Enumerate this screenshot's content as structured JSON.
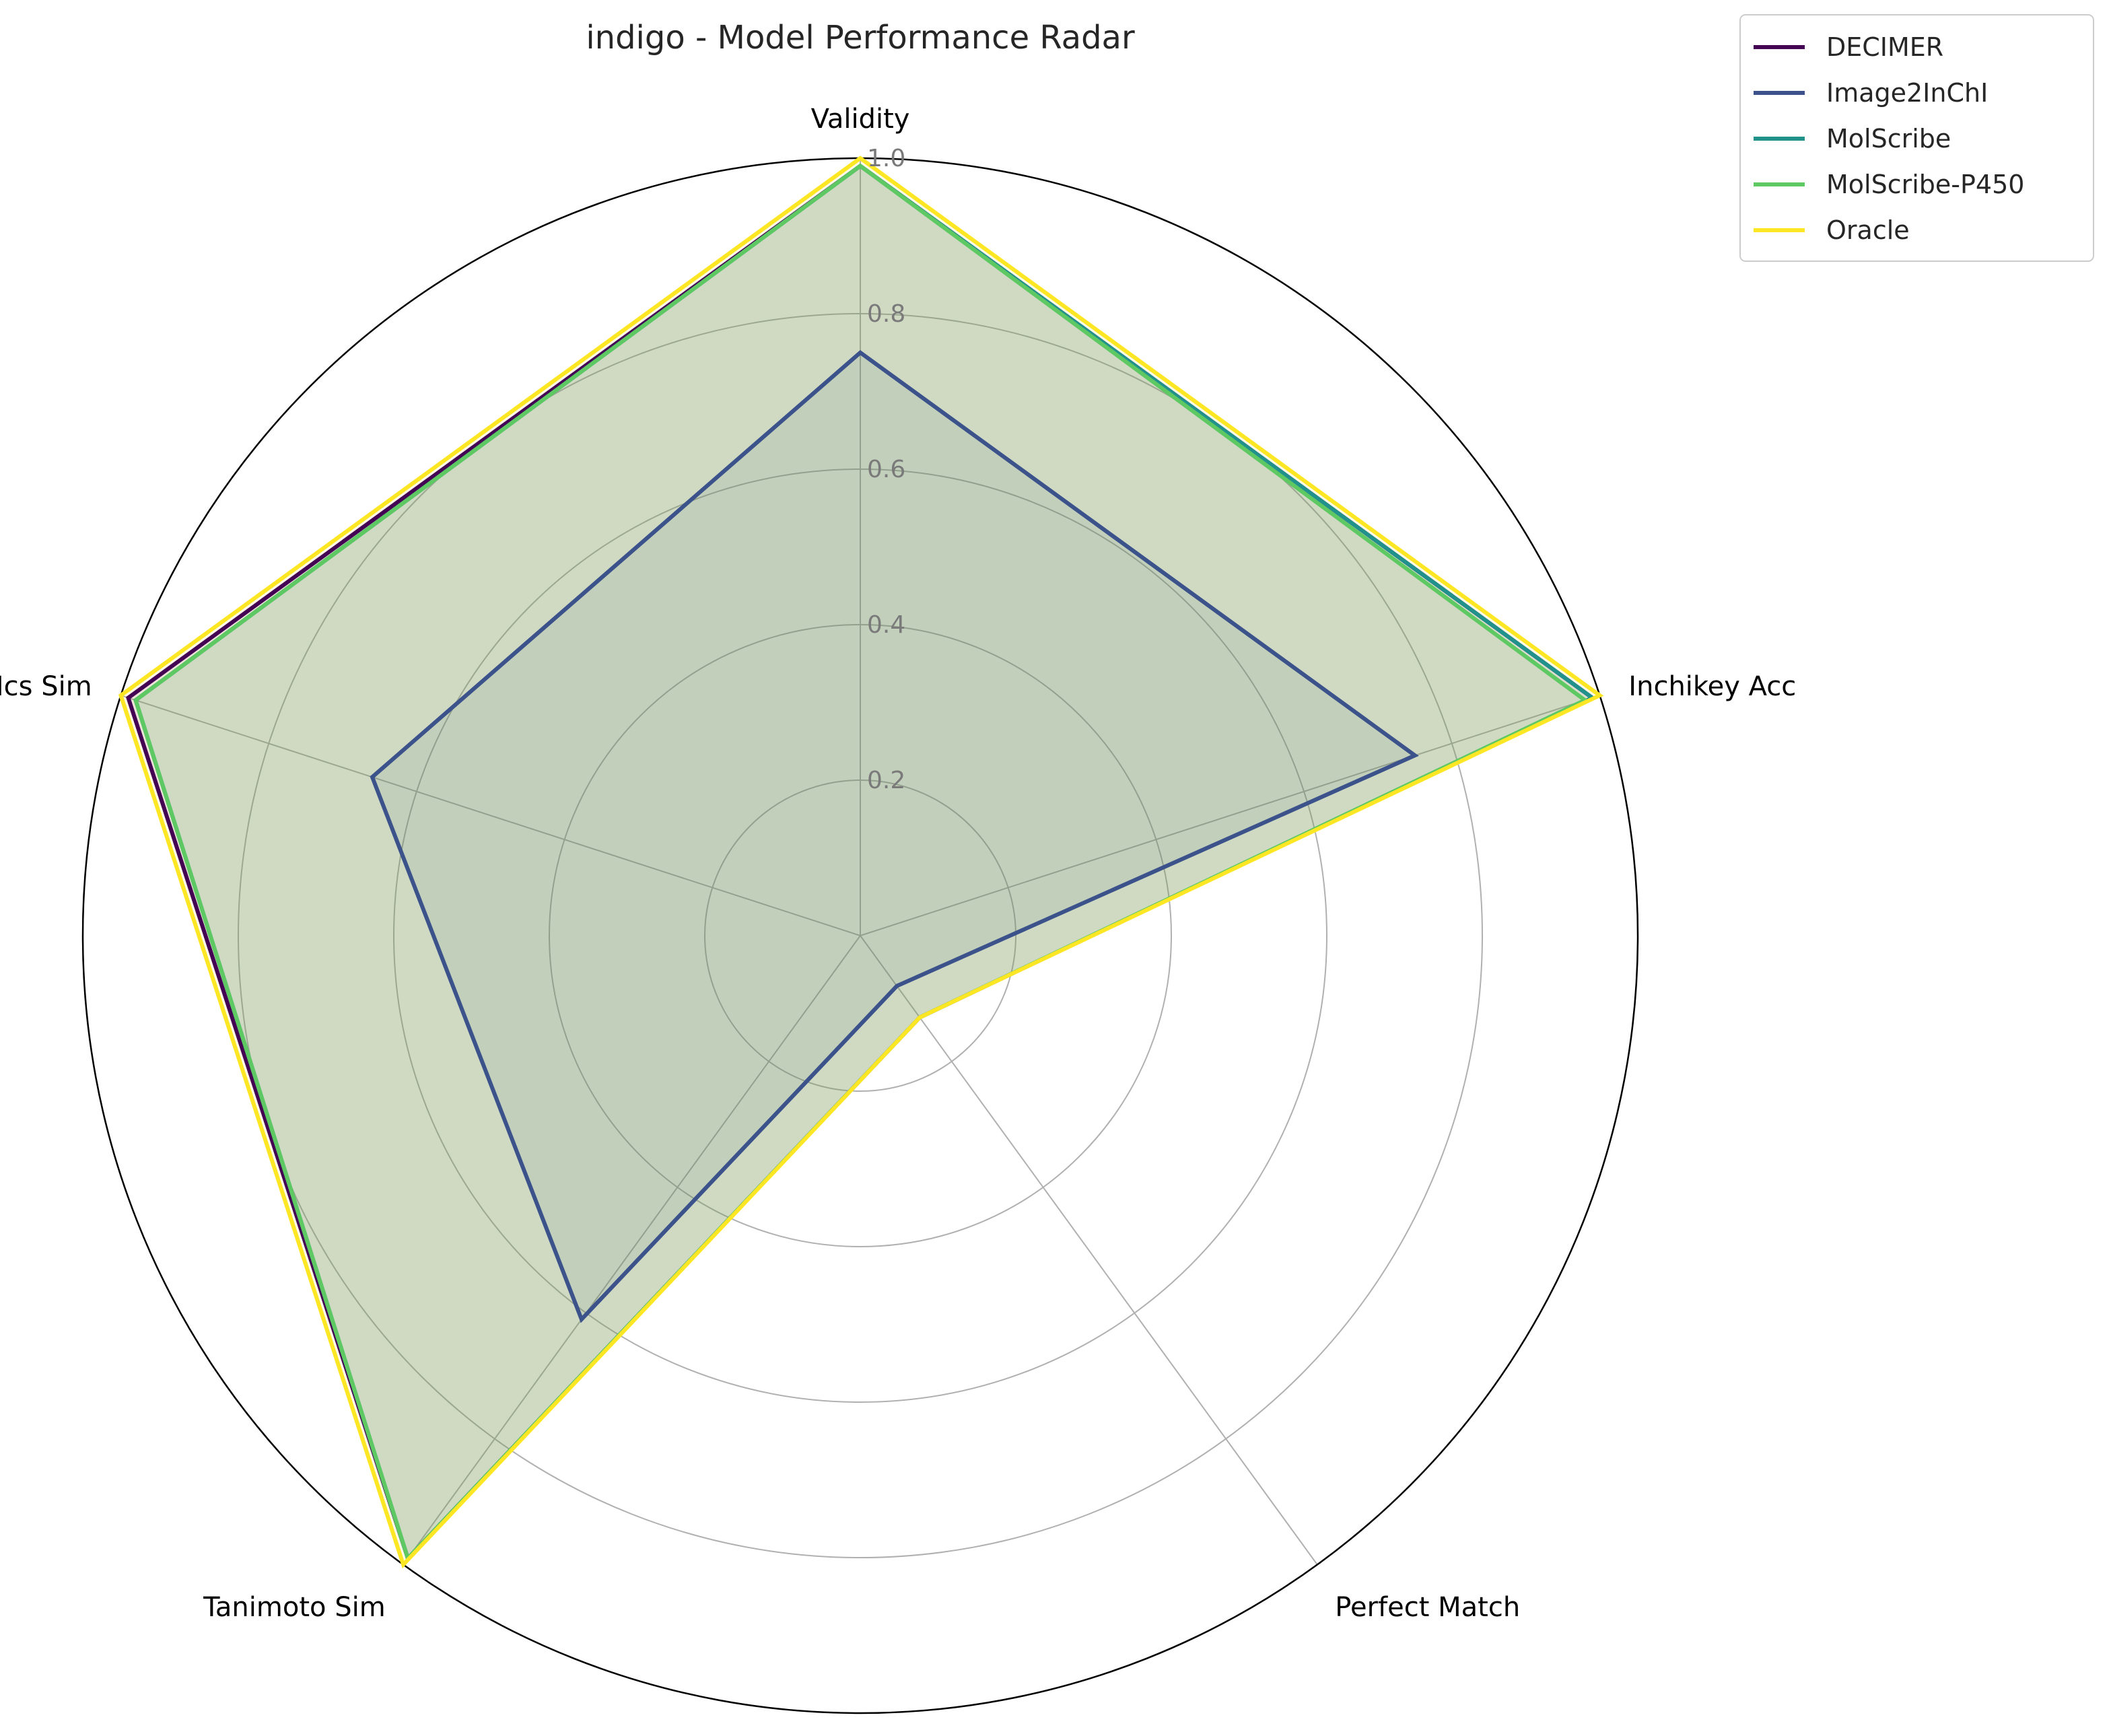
{
  "chart_data": {
    "type": "radar",
    "title": "indigo - Model Performance Radar",
    "axes": [
      "Validity",
      "Inchikey Acc",
      "Perfect Match",
      "Tanimoto Sim",
      "Mcs Sim"
    ],
    "radial_ticks": [
      "0.2",
      "0.4",
      "0.6",
      "0.8",
      "1.0"
    ],
    "rlim": [
      0,
      1.0
    ],
    "grid": true,
    "legend_position": "top-right, outside",
    "series": [
      {
        "name": "DECIMER",
        "color": "#440154",
        "values": [
          0.99,
          0.99,
          0.13,
          0.99,
          0.99
        ]
      },
      {
        "name": "Image2InChI",
        "color": "#3b528b",
        "values": [
          0.75,
          0.75,
          0.08,
          0.61,
          0.66
        ]
      },
      {
        "name": "MolScribe",
        "color": "#21918c",
        "values": [
          0.99,
          0.99,
          0.13,
          0.99,
          0.98
        ]
      },
      {
        "name": "MolScribe-P450",
        "color": "#5ec962",
        "values": [
          0.99,
          0.98,
          0.13,
          0.99,
          0.98
        ]
      },
      {
        "name": "Oracle",
        "color": "#fde725",
        "values": [
          1.0,
          1.0,
          0.13,
          1.0,
          1.0
        ]
      }
    ]
  }
}
